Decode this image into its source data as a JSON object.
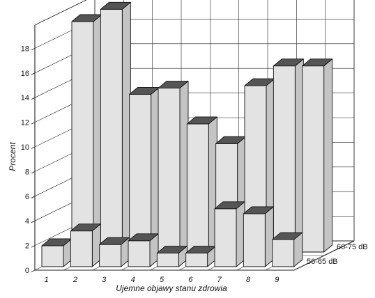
{
  "chart_data": {
    "type": "bar",
    "title": "",
    "xlabel": "Ujemne objawy stanu zdrowia",
    "ylabel": "Procent",
    "categories": [
      "1",
      "2",
      "3",
      "4",
      "5",
      "6",
      "7",
      "8",
      "9"
    ],
    "y_ticks": [
      "0",
      "2",
      "4",
      "6",
      "8",
      "10",
      "12",
      "14",
      "16",
      "18"
    ],
    "ylim": [
      0,
      20
    ],
    "grid": true,
    "series": [
      {
        "name": "66-75 dB",
        "values": [
          18.7,
          19.7,
          12.8,
          13.3,
          10.4,
          8.8,
          13.5,
          15.1,
          15.1
        ]
      },
      {
        "name": "56-65 dB",
        "values": [
          1.7,
          2.9,
          1.8,
          2.1,
          1.1,
          1.1,
          4.7,
          4.3,
          2.2
        ]
      }
    ],
    "colors": {
      "bar_front": "#e3e3e3",
      "bar_side": "#c4c4c4",
      "bar_top": "#555555"
    }
  }
}
